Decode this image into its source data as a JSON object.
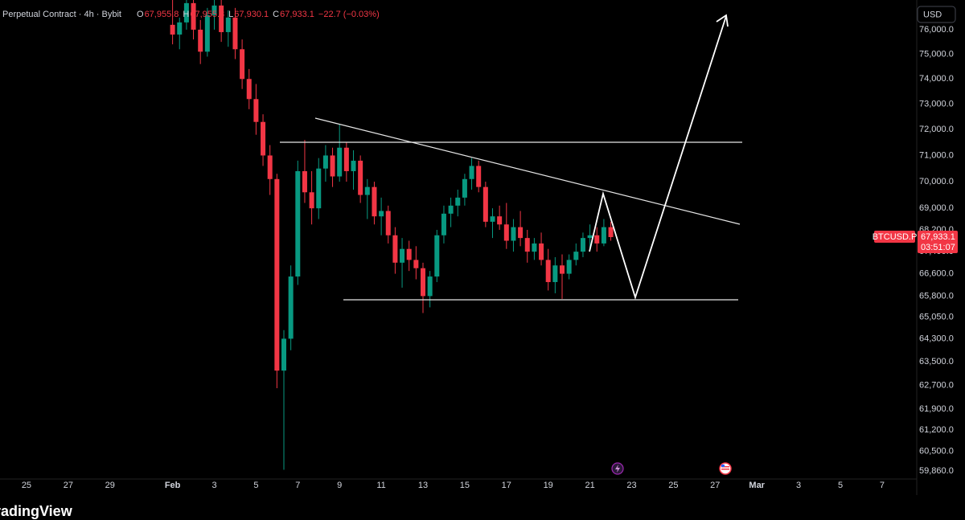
{
  "header": {
    "instrument": "Perpetual Contract · 4h · Bybit",
    "ohlc": [
      {
        "key": "O",
        "value": "67,955.8"
      },
      {
        "key": "H",
        "value": "67,955.8"
      },
      {
        "key": "L",
        "value": "67,930.1"
      },
      {
        "key": "C",
        "value": "67,933.1"
      }
    ],
    "change": "−22.7 (−0.03%)"
  },
  "currency_button": "USD",
  "symbol_tag": "BTCUSD.P",
  "countdown": "03:51:07",
  "brand": "TradingView",
  "chart_data": {
    "type": "candlestick",
    "log_scale": true,
    "grid": false,
    "up_color": "#089981",
    "down_color": "#f23645",
    "ylim": [
      59600,
      77230
    ],
    "yticks": [
      {
        "value": 76000,
        "label": "76,000.0"
      },
      {
        "value": 75000,
        "label": "75,000.0"
      },
      {
        "value": 74000,
        "label": "74,000.0"
      },
      {
        "value": 73000,
        "label": "73,000.0"
      },
      {
        "value": 72000,
        "label": "72,000.0"
      },
      {
        "value": 71000,
        "label": "71,000.0"
      },
      {
        "value": 70000,
        "label": "70,000.0"
      },
      {
        "value": 69000,
        "label": "69,000.0"
      },
      {
        "value": 68200,
        "label": "68,200.0"
      },
      {
        "value": 67400,
        "label": "67,400.0"
      },
      {
        "value": 66600,
        "label": "66,600.0"
      },
      {
        "value": 65800,
        "label": "65,800.0"
      },
      {
        "value": 65050,
        "label": "65,050.0"
      },
      {
        "value": 64300,
        "label": "64,300.0"
      },
      {
        "value": 63500,
        "label": "63,500.0"
      },
      {
        "value": 62700,
        "label": "62,700.0"
      },
      {
        "value": 61900,
        "label": "61,900.0"
      },
      {
        "value": 61200,
        "label": "61,200.0"
      },
      {
        "value": 60500,
        "label": "60,500.0"
      },
      {
        "value": 59860,
        "label": "59,860.0"
      }
    ],
    "last_price": {
      "value": 67933.1,
      "label": "67,933.1"
    },
    "categories": [
      null,
      null,
      null,
      "25",
      null,
      null,
      null,
      null,
      null,
      "27",
      null,
      null,
      null,
      null,
      null,
      "29",
      null,
      null,
      null,
      null,
      null,
      null,
      null,
      null,
      "Feb",
      null,
      null,
      null,
      null,
      null,
      "3",
      null,
      null,
      null,
      null,
      null,
      "5",
      null,
      null,
      null,
      null,
      null,
      "7",
      null,
      null,
      null,
      null,
      null,
      "9",
      null,
      null,
      null,
      null,
      null,
      "11",
      null,
      null,
      null,
      null,
      null,
      "13",
      null,
      null,
      null,
      null,
      null,
      "15",
      null,
      null,
      null,
      null,
      null,
      "17",
      null,
      null,
      null,
      null,
      null,
      "19",
      null,
      null,
      null,
      null,
      null,
      "21",
      null,
      null,
      null,
      null,
      null,
      "23",
      null,
      null,
      null,
      null,
      null,
      "25",
      null,
      null,
      null,
      null,
      null,
      "27",
      null,
      null,
      null,
      null,
      null,
      "Mar",
      null,
      null,
      null,
      null,
      null,
      "3",
      null,
      null,
      null,
      null,
      null,
      "5",
      null,
      null,
      null,
      null,
      null,
      "7",
      null,
      null,
      null,
      null,
      null
    ],
    "open": [
      null,
      null,
      null,
      null,
      null,
      null,
      null,
      null,
      null,
      null,
      null,
      null,
      null,
      null,
      null,
      null,
      null,
      null,
      null,
      null,
      null,
      null,
      null,
      null,
      76200,
      75800,
      76300,
      77100,
      76000,
      75100,
      76600,
      77000,
      75900,
      76500,
      75200,
      74000,
      73200,
      72300,
      71000,
      70100,
      63200,
      64300,
      66500,
      70400,
      69600,
      69000,
      70500,
      71000,
      70200,
      71300,
      70400,
      70800,
      69500,
      69800,
      68700,
      68900,
      68000,
      67000,
      67500,
      67100,
      66800,
      65800,
      66500,
      68000,
      68800,
      69100,
      69400,
      70100,
      70600,
      69800,
      68500,
      68700,
      68400,
      67800,
      68300,
      67900,
      67400,
      67700,
      67100,
      66300,
      66900,
      66600,
      67100,
      67400,
      67900,
      68000,
      67700,
      68300,
      null,
      null,
      null,
      null,
      null,
      null,
      null,
      null,
      null,
      null,
      null,
      null,
      null,
      null,
      null,
      null,
      null,
      null,
      null,
      null,
      null,
      null,
      null,
      null,
      null,
      null,
      null,
      null,
      null,
      null,
      null,
      null,
      null,
      null,
      null,
      null,
      null,
      null,
      null,
      null,
      null,
      null,
      null,
      null
    ],
    "high": [
      null,
      null,
      null,
      null,
      null,
      null,
      null,
      null,
      null,
      null,
      null,
      null,
      null,
      null,
      null,
      null,
      null,
      null,
      null,
      null,
      null,
      null,
      null,
      null,
      77500,
      76500,
      77400,
      77600,
      76400,
      76900,
      77500,
      77600,
      76800,
      76900,
      75600,
      74400,
      73800,
      72600,
      71400,
      70300,
      64600,
      66900,
      70800,
      71600,
      70400,
      70900,
      71400,
      71300,
      72200,
      71500,
      71200,
      71000,
      70100,
      70000,
      69400,
      69100,
      68300,
      67900,
      67800,
      67600,
      67000,
      66700,
      68200,
      69100,
      69400,
      69700,
      70300,
      70900,
      70800,
      70000,
      69000,
      69100,
      69200,
      68600,
      68900,
      68200,
      67900,
      68100,
      67500,
      67200,
      67300,
      67300,
      67700,
      68100,
      68400,
      68300,
      68600,
      68500,
      null,
      null,
      null,
      null,
      null,
      null,
      null,
      null,
      null,
      null,
      null,
      null,
      null,
      null,
      null,
      null,
      null,
      null,
      null,
      null,
      null,
      null,
      null,
      null,
      null,
      null,
      null,
      null,
      null,
      null,
      null,
      null,
      null,
      null,
      null,
      null,
      null,
      null,
      null,
      null,
      null,
      null,
      null,
      null
    ],
    "low": [
      null,
      null,
      null,
      null,
      null,
      null,
      null,
      null,
      null,
      null,
      null,
      null,
      null,
      null,
      null,
      null,
      null,
      null,
      null,
      null,
      null,
      null,
      null,
      null,
      75400,
      75200,
      76000,
      75600,
      74600,
      74900,
      76000,
      75500,
      75300,
      74800,
      73600,
      72800,
      71800,
      70600,
      69500,
      62600,
      59900,
      63900,
      66200,
      69200,
      68400,
      68600,
      70000,
      69800,
      70000,
      70000,
      69700,
      69200,
      68600,
      68400,
      68000,
      67700,
      66600,
      66100,
      66700,
      66400,
      65200,
      65400,
      66300,
      67700,
      68300,
      68700,
      69100,
      69700,
      69600,
      68300,
      67900,
      68200,
      67500,
      67400,
      67600,
      67000,
      67100,
      66900,
      66000,
      65900,
      65700,
      66400,
      66900,
      67200,
      67500,
      67400,
      67600,
      67800,
      null,
      null,
      null,
      null,
      null,
      null,
      null,
      null,
      null,
      null,
      null,
      null,
      null,
      null,
      null,
      null,
      null,
      null,
      null,
      null,
      null,
      null,
      null,
      null,
      null,
      null,
      null,
      null,
      null,
      null,
      null,
      null,
      null,
      null,
      null,
      null,
      null,
      null,
      null,
      null,
      null,
      null,
      null,
      null
    ],
    "close": [
      null,
      null,
      null,
      null,
      null,
      null,
      null,
      null,
      null,
      null,
      null,
      null,
      null,
      null,
      null,
      null,
      null,
      null,
      null,
      null,
      null,
      null,
      null,
      null,
      75800,
      76300,
      77100,
      76000,
      75100,
      76600,
      77000,
      75900,
      76500,
      75200,
      74000,
      73200,
      72300,
      71000,
      70100,
      63200,
      64300,
      66500,
      70400,
      69600,
      69000,
      70500,
      71000,
      70200,
      71300,
      70400,
      70800,
      69500,
      69800,
      68700,
      68900,
      68000,
      67000,
      67500,
      67100,
      66800,
      65800,
      66500,
      68000,
      68800,
      69100,
      69400,
      70100,
      70600,
      69800,
      68500,
      68700,
      68400,
      67800,
      68300,
      67900,
      67400,
      67700,
      67100,
      66300,
      66900,
      66600,
      67100,
      67400,
      67900,
      68000,
      67700,
      68300,
      67933.1,
      null,
      null,
      null,
      null,
      null,
      null,
      null,
      null,
      null,
      null,
      null,
      null,
      null,
      null,
      null,
      null,
      null,
      null,
      null,
      null,
      null,
      null,
      null,
      null,
      null,
      null,
      null,
      null,
      null,
      null,
      null,
      null,
      null,
      null,
      null,
      null,
      null,
      null,
      null,
      null,
      null,
      null,
      null,
      null
    ]
  }
}
